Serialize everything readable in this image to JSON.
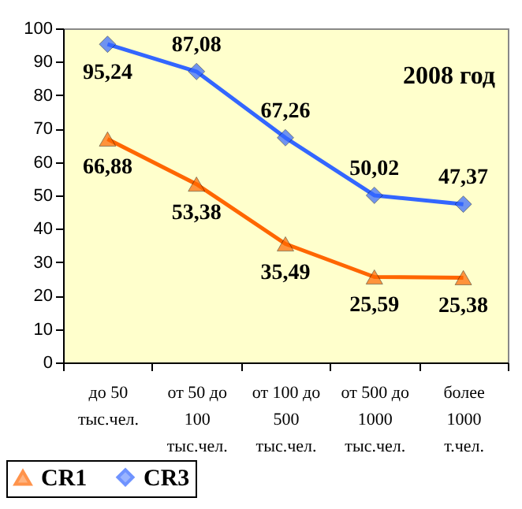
{
  "chart_data": {
    "type": "line",
    "categories": [
      "до 50 тыс.чел.",
      "от 50 до 100 тыс.чел.",
      "от 100 до 500 тыс.чел.",
      "от 500 до 1000 тыс.чел.",
      "более 1000 т.чел."
    ],
    "series": [
      {
        "name": "CR1",
        "color": "#ff6600",
        "marker": "triangle",
        "values": [
          66.88,
          53.38,
          35.49,
          25.59,
          25.38
        ],
        "value_labels": [
          "66,88",
          "53,38",
          "35,49",
          "25,59",
          "25,38"
        ]
      },
      {
        "name": "CR3",
        "color": "#3366ff",
        "marker": "diamond",
        "values": [
          95.24,
          87.08,
          67.26,
          50.02,
          47.37
        ],
        "value_labels": [
          "95,24",
          "87,08",
          "67,26",
          "50,02",
          "47,37"
        ]
      }
    ],
    "ylim": [
      0,
      100
    ],
    "yticks": [
      0,
      10,
      20,
      30,
      40,
      50,
      60,
      70,
      80,
      90,
      100
    ],
    "grid": false,
    "legend": "bottom left",
    "annotations": [
      "2008 год"
    ]
  }
}
